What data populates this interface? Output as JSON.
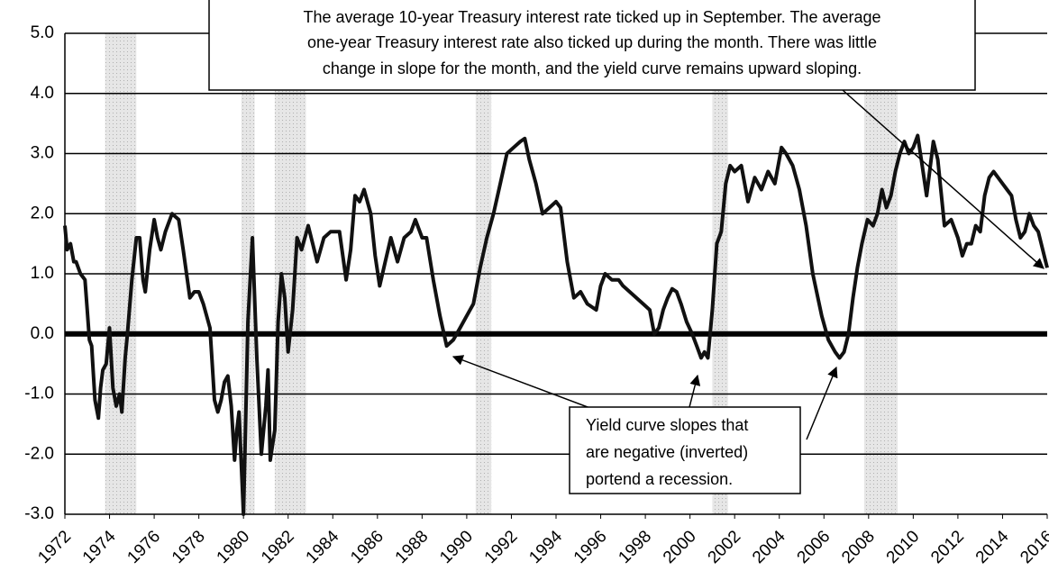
{
  "chart_data": {
    "type": "line",
    "xlim": [
      1972,
      2016
    ],
    "xticks": [
      1972,
      1974,
      1976,
      1978,
      1980,
      1982,
      1984,
      1986,
      1988,
      1990,
      1992,
      1994,
      1996,
      1998,
      2000,
      2002,
      2004,
      2006,
      2008,
      2010,
      2012,
      2014,
      2016
    ],
    "ylim": [
      -3,
      5
    ],
    "yticks": [
      {
        "value": -3,
        "label": "-3.0"
      },
      {
        "value": -2,
        "label": "-2.0"
      },
      {
        "value": -1,
        "label": "-1.0"
      },
      {
        "value": 0,
        "label": "0.0"
      },
      {
        "value": 1,
        "label": "1.0"
      },
      {
        "value": 2,
        "label": "2.0"
      },
      {
        "value": 3,
        "label": "3.0"
      },
      {
        "value": 4,
        "label": "4.0"
      },
      {
        "value": 5,
        "label": "5.0"
      }
    ],
    "grid": true,
    "recessions": [
      [
        1973.8,
        1975.2
      ],
      [
        1979.9,
        1980.5
      ],
      [
        1981.4,
        1982.8
      ],
      [
        1990.4,
        1991.1
      ],
      [
        2001.0,
        2001.7
      ],
      [
        2007.8,
        2009.3
      ]
    ],
    "recession_color": "#d9d9d9",
    "x": [
      1972.0,
      1972.1,
      1972.25,
      1972.4,
      1972.5,
      1972.7,
      1972.9,
      1973.0,
      1973.1,
      1973.2,
      1973.35,
      1973.5,
      1973.6,
      1973.7,
      1973.85,
      1974.0,
      1974.15,
      1974.3,
      1974.45,
      1974.55,
      1974.7,
      1974.8,
      1975.0,
      1975.2,
      1975.35,
      1975.5,
      1975.6,
      1975.8,
      1976.0,
      1976.15,
      1976.3,
      1976.5,
      1976.8,
      1977.1,
      1977.3,
      1977.6,
      1977.8,
      1978.0,
      1978.2,
      1978.5,
      1978.7,
      1978.85,
      1979.0,
      1979.15,
      1979.3,
      1979.45,
      1979.6,
      1979.7,
      1979.8,
      1980.0,
      1980.2,
      1980.4,
      1980.6,
      1980.8,
      1981.0,
      1981.1,
      1981.2,
      1981.4,
      1981.55,
      1981.7,
      1981.85,
      1982.0,
      1982.2,
      1982.4,
      1982.6,
      1982.9,
      1983.1,
      1983.3,
      1983.6,
      1983.9,
      1984.3,
      1984.6,
      1984.8,
      1985.0,
      1985.2,
      1985.4,
      1985.7,
      1985.9,
      1986.1,
      1986.35,
      1986.6,
      1986.9,
      1987.2,
      1987.5,
      1987.7,
      1988.0,
      1988.2,
      1988.5,
      1988.8,
      1989.1,
      1989.4,
      1989.7,
      1990.0,
      1990.3,
      1990.6,
      1990.9,
      1991.2,
      1991.5,
      1991.8,
      1992.1,
      1992.4,
      1992.6,
      1992.8,
      1993.1,
      1993.4,
      1993.7,
      1994.0,
      1994.2,
      1994.5,
      1994.8,
      1995.1,
      1995.4,
      1995.8,
      1996.0,
      1996.2,
      1996.5,
      1996.8,
      1997.0,
      1997.3,
      1997.6,
      1997.9,
      1998.2,
      1998.4,
      1998.6,
      1998.8,
      1999.0,
      1999.2,
      1999.4,
      1999.6,
      1999.85,
      2000.1,
      2000.3,
      2000.5,
      2000.65,
      2000.8,
      2001.0,
      2001.2,
      2001.4,
      2001.6,
      2001.8,
      2002.0,
      2002.3,
      2002.6,
      2002.9,
      2003.2,
      2003.5,
      2003.8,
      2004.1,
      2004.3,
      2004.6,
      2004.9,
      2005.2,
      2005.5,
      2005.9,
      2006.2,
      2006.5,
      2006.7,
      2006.9,
      2007.1,
      2007.3,
      2007.5,
      2007.7,
      2007.95,
      2008.2,
      2008.4,
      2008.6,
      2008.8,
      2009.0,
      2009.2,
      2009.4,
      2009.6,
      2009.8,
      2010.0,
      2010.2,
      2010.4,
      2010.6,
      2010.9,
      2011.1,
      2011.4,
      2011.7,
      2012.0,
      2012.2,
      2012.4,
      2012.6,
      2012.8,
      2013.0,
      2013.2,
      2013.4,
      2013.6,
      2013.8,
      2014.0,
      2014.2,
      2014.4,
      2014.6,
      2014.8,
      2015.0,
      2015.2,
      2015.4,
      2015.6,
      2016.0
    ],
    "series": [
      {
        "color": "#111111",
        "values": [
          1.8,
          1.4,
          1.5,
          1.2,
          1.2,
          1.0,
          0.9,
          0.4,
          -0.1,
          -0.2,
          -1.1,
          -1.4,
          -0.9,
          -0.6,
          -0.5,
          0.1,
          -0.9,
          -1.2,
          -1.0,
          -1.3,
          -0.4,
          0.0,
          0.9,
          1.6,
          1.6,
          0.9,
          0.7,
          1.4,
          1.9,
          1.6,
          1.4,
          1.7,
          2.0,
          1.9,
          1.4,
          0.6,
          0.7,
          0.7,
          0.5,
          0.1,
          -1.1,
          -1.3,
          -1.1,
          -0.8,
          -0.7,
          -1.2,
          -2.1,
          -1.6,
          -1.3,
          -3.0,
          0.2,
          1.6,
          -0.4,
          -2.0,
          -1.2,
          -0.6,
          -2.1,
          -1.6,
          0.2,
          1.0,
          0.6,
          -0.3,
          0.4,
          1.6,
          1.4,
          1.8,
          1.5,
          1.2,
          1.6,
          1.7,
          1.7,
          0.9,
          1.4,
          2.3,
          2.2,
          2.4,
          2.0,
          1.3,
          0.8,
          1.2,
          1.6,
          1.2,
          1.6,
          1.7,
          1.9,
          1.6,
          1.6,
          0.9,
          0.3,
          -0.2,
          -0.1,
          0.1,
          0.3,
          0.5,
          1.1,
          1.6,
          2.0,
          2.5,
          3.0,
          3.1,
          3.2,
          3.25,
          2.9,
          2.5,
          2.0,
          2.1,
          2.2,
          2.1,
          1.2,
          0.6,
          0.7,
          0.5,
          0.4,
          0.8,
          1.0,
          0.9,
          0.9,
          0.8,
          0.7,
          0.6,
          0.5,
          0.4,
          0.0,
          0.1,
          0.4,
          0.6,
          0.75,
          0.7,
          0.5,
          0.2,
          0.0,
          -0.2,
          -0.4,
          -0.3,
          -0.4,
          0.4,
          1.5,
          1.7,
          2.5,
          2.8,
          2.7,
          2.8,
          2.2,
          2.6,
          2.4,
          2.7,
          2.5,
          3.1,
          3.0,
          2.8,
          2.4,
          1.8,
          1.0,
          0.3,
          -0.1,
          -0.3,
          -0.4,
          -0.3,
          0.0,
          0.6,
          1.1,
          1.5,
          1.9,
          1.8,
          2.0,
          2.4,
          2.1,
          2.3,
          2.7,
          3.0,
          3.2,
          3.0,
          3.1,
          3.3,
          2.8,
          2.3,
          3.2,
          2.9,
          1.8,
          1.9,
          1.6,
          1.3,
          1.5,
          1.5,
          1.8,
          1.7,
          2.3,
          2.6,
          2.7,
          2.6,
          2.5,
          2.4,
          2.3,
          1.9,
          1.6,
          1.7,
          2.0,
          1.8,
          1.7,
          1.1
        ]
      }
    ],
    "annotations": [
      {
        "lines": [
          "The average 10-year Treasury interest rate  ticked up in  September.  The average",
          "one-year Treasury interest rate  also ticked up during the month.  There was  little",
          "change in slope for the month, and the yield curve remains upward sloping."
        ]
      },
      {
        "lines": [
          "Yield curve slopes that",
          "are negative (inverted)",
          "portend a recession."
        ]
      }
    ]
  }
}
